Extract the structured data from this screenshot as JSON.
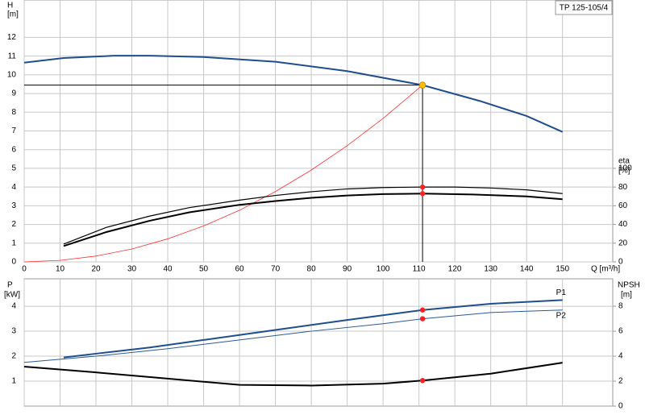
{
  "chart_data": [
    {
      "type": "line",
      "title": "TP 125-105/4",
      "xlabel": "Q [m³/h]",
      "ylabel": "H",
      "yunit": "[m]",
      "y2label": "eta",
      "y2unit": "[%]",
      "xlim": [
        0,
        164
      ],
      "xticks": [
        0,
        10,
        20,
        30,
        40,
        50,
        60,
        70,
        80,
        90,
        100,
        110,
        120,
        130,
        140,
        150
      ],
      "ylim": [
        0,
        14
      ],
      "yticks": [
        0,
        1,
        2,
        3,
        4,
        5,
        6,
        7,
        8,
        9,
        10,
        11,
        12
      ],
      "y2lim": [
        0,
        280
      ],
      "y2ticks": [
        0,
        20,
        40,
        60,
        80,
        100
      ],
      "grid": true,
      "duty_point": {
        "x": 111,
        "y": 9.45
      },
      "duty_color": "#ffc000",
      "marker_color": "#ff2020",
      "series": [
        {
          "color": "#1f4e8c",
          "width": 2,
          "x": [
            0,
            11,
            25,
            35,
            50,
            70,
            90,
            111,
            127,
            140,
            150
          ],
          "values": [
            10.65,
            10.9,
            11.02,
            11.02,
            10.95,
            10.7,
            10.2,
            9.45,
            8.6,
            7.8,
            6.95
          ]
        },
        {
          "color": "#ff3030",
          "width": 0.8,
          "x": [
            0,
            10,
            20,
            30,
            40,
            50,
            60,
            70,
            80,
            90,
            100,
            111
          ],
          "values": [
            0,
            0.08,
            0.31,
            0.69,
            1.23,
            1.92,
            2.76,
            3.76,
            4.91,
            6.21,
            7.67,
            9.45
          ]
        },
        {
          "color": "#000000",
          "width": 1.2,
          "axis": "y2",
          "x": [
            11,
            23,
            35,
            46,
            60,
            70,
            80,
            90,
            100,
            111,
            120,
            130,
            140,
            150
          ],
          "values": [
            19,
            37,
            49,
            58,
            66,
            71,
            75,
            78,
            79.5,
            80,
            80,
            79,
            77,
            73
          ]
        },
        {
          "color": "#000000",
          "width": 2,
          "axis": "y2",
          "x": [
            11,
            23,
            35,
            46,
            60,
            70,
            80,
            90,
            100,
            111,
            125,
            140,
            150
          ],
          "values": [
            17,
            32,
            44,
            53,
            61,
            65,
            68.5,
            71,
            72.5,
            73,
            72,
            70,
            67
          ]
        }
      ]
    },
    {
      "type": "line",
      "ylabel": "P",
      "yunit": "[kW]",
      "y2label": "NPSH",
      "y2unit": "[m]",
      "xlim": [
        0,
        164
      ],
      "ylim": [
        0,
        5.1
      ],
      "yticks": [
        1,
        2,
        3,
        4
      ],
      "y2lim": [
        0,
        10.2
      ],
      "y2ticks": [
        0,
        2,
        4,
        6,
        8
      ],
      "grid": true,
      "duty_point": {
        "x": 111
      },
      "marker_color": "#ff2020",
      "series": [
        {
          "name": "P1",
          "color": "#1f4e8c",
          "width": 2,
          "x": [
            11,
            20,
            35,
            50,
            70,
            90,
            111,
            130,
            150
          ],
          "values": [
            1.95,
            2.1,
            2.35,
            2.65,
            3.05,
            3.45,
            3.85,
            4.1,
            4.25
          ]
        },
        {
          "name": "P2",
          "color": "#2a5a9a",
          "width": 1,
          "x": [
            0,
            20,
            40,
            60,
            80,
            100,
            111,
            130,
            150
          ],
          "values": [
            1.75,
            2.0,
            2.3,
            2.65,
            3.0,
            3.3,
            3.5,
            3.75,
            3.85
          ]
        },
        {
          "color": "#000000",
          "width": 2,
          "axis": "y2",
          "x": [
            0,
            20,
            40,
            60,
            80,
            100,
            111,
            130,
            150
          ],
          "values": [
            3.16,
            2.7,
            2.2,
            1.7,
            1.65,
            1.8,
            2.05,
            2.6,
            3.48
          ]
        }
      ]
    }
  ]
}
